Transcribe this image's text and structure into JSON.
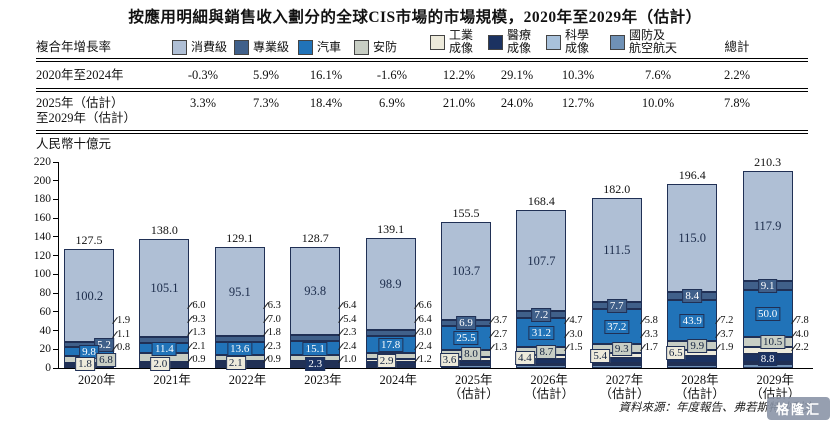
{
  "title": "按應用明細與銷售收入劃分的全球CIS市場的市場規模，2020年至2029年（估計）",
  "source_note": "資料來源：年度報告、弗若斯特沙利文",
  "watermark": "格隆汇",
  "table": {
    "row_header": "複合年增長率",
    "total_header": "總計",
    "rows": [
      {
        "label": "2020年至2024年",
        "values": [
          "-0.3%",
          "5.9%",
          "16.1%",
          "-1.6%",
          "12.2%",
          "29.1%",
          "10.3%",
          "7.6%",
          "2.2%"
        ]
      },
      {
        "label": "2025年（估計）\n至2029年（估計）",
        "values": [
          "3.3%",
          "7.3%",
          "18.4%",
          "6.9%",
          "21.0%",
          "24.0%",
          "12.7%",
          "10.0%",
          "7.8%"
        ]
      }
    ]
  },
  "legend": [
    {
      "key": "consumer",
      "label": "消費級",
      "color": "#afbfd5"
    },
    {
      "key": "professional",
      "label": "專業級",
      "color": "#40608a"
    },
    {
      "key": "automotive",
      "label": "汽車",
      "color": "#2173b8"
    },
    {
      "key": "security",
      "label": "安防",
      "color": "#c8cec4"
    },
    {
      "key": "industrial",
      "label": "工業\n成像",
      "color": "#edeadb"
    },
    {
      "key": "medical",
      "label": "醫療\n成像",
      "color": "#1b3261"
    },
    {
      "key": "scientific",
      "label": "科學\n成像",
      "color": "#a8c1db"
    },
    {
      "key": "defense",
      "label": "國防及\n航空航天",
      "color": "#6f91b6"
    }
  ],
  "chart_data": {
    "type": "bar",
    "stacked": true,
    "title": "按應用明細與銷售收入劃分的全球CIS市場的市場規模，2020年至2029年（估計）",
    "ylabel": "人民幣十億元",
    "y_axis": {
      "min": 0,
      "max": 220,
      "step": 20
    },
    "grid": false,
    "stack_order_bottom_to_top": [
      "defense",
      "scientific",
      "medical",
      "industrial",
      "security",
      "automotive",
      "professional",
      "consumer"
    ],
    "years": [
      {
        "label": "2020年",
        "label2": "",
        "total": 127.5,
        "values": {
          "consumer": 100.2,
          "professional": 5.2,
          "automotive": 9.8,
          "security": 6.8,
          "industrial": 1.8,
          "medical": 1.1,
          "scientific": 0.8,
          "defense": 1.9
        },
        "boxed": [
          "professional",
          "automotive",
          "security",
          "industrial"
        ],
        "side": [
          "defense",
          "medical",
          "scientific"
        ]
      },
      {
        "label": "2021年",
        "label2": "",
        "total": 138.0,
        "values": {
          "consumer": 105.1,
          "professional": 6.0,
          "automotive": 11.4,
          "security": 9.3,
          "industrial": 2.0,
          "medical": 1.3,
          "scientific": 0.9,
          "defense": 2.1
        },
        "boxed": [
          "automotive",
          "industrial"
        ],
        "side": [
          "professional",
          "security",
          "medical",
          "defense",
          "scientific"
        ]
      },
      {
        "label": "2022年",
        "label2": "",
        "total": 129.1,
        "values": {
          "consumer": 95.1,
          "professional": 6.3,
          "automotive": 13.6,
          "security": 7.0,
          "industrial": 2.1,
          "medical": 1.8,
          "scientific": 0.9,
          "defense": 2.3
        },
        "boxed": [
          "automotive",
          "industrial"
        ],
        "side": [
          "professional",
          "security",
          "medical",
          "defense",
          "scientific"
        ]
      },
      {
        "label": "2023年",
        "label2": "",
        "total": 128.7,
        "values": {
          "consumer": 93.8,
          "professional": 6.4,
          "automotive": 15.1,
          "security": 5.4,
          "industrial": 2.3,
          "medical": 2.3,
          "scientific": 1.0,
          "defense": 2.4
        },
        "boxed": [
          "automotive",
          "medical"
        ],
        "side": [
          "professional",
          "security",
          "industrial",
          "defense",
          "scientific"
        ]
      },
      {
        "label": "2024年",
        "label2": "",
        "total": 139.1,
        "values": {
          "consumer": 98.9,
          "professional": 6.6,
          "automotive": 17.8,
          "security": 6.4,
          "industrial": 2.9,
          "medical": 3.0,
          "scientific": 1.2,
          "defense": 2.4
        },
        "boxed": [
          "automotive",
          "industrial"
        ],
        "side": [
          "professional",
          "security",
          "medical",
          "defense",
          "scientific"
        ]
      },
      {
        "label": "2025年",
        "label2": "（估計）",
        "total": 155.5,
        "values": {
          "consumer": 103.7,
          "professional": 6.9,
          "automotive": 25.5,
          "security": 8.0,
          "industrial": 3.6,
          "medical": 3.7,
          "scientific": 1.3,
          "defense": 2.7
        },
        "boxed": [
          "professional",
          "automotive",
          "security",
          "industrial"
        ],
        "side": [
          "medical",
          "defense",
          "scientific"
        ]
      },
      {
        "label": "2026年",
        "label2": "（估計）",
        "total": 168.4,
        "values": {
          "consumer": 107.7,
          "professional": 7.2,
          "automotive": 31.2,
          "security": 8.7,
          "industrial": 4.4,
          "medical": 4.7,
          "scientific": 1.5,
          "defense": 3.0
        },
        "boxed": [
          "professional",
          "automotive",
          "security",
          "industrial"
        ],
        "side": [
          "medical",
          "defense",
          "scientific"
        ]
      },
      {
        "label": "2027年",
        "label2": "（估計）",
        "total": 182.0,
        "values": {
          "consumer": 111.5,
          "professional": 7.7,
          "automotive": 37.2,
          "security": 9.3,
          "industrial": 5.4,
          "medical": 5.8,
          "scientific": 1.7,
          "defense": 3.3
        },
        "boxed": [
          "professional",
          "automotive",
          "security",
          "industrial"
        ],
        "side": [
          "medical",
          "defense",
          "scientific"
        ]
      },
      {
        "label": "2028年",
        "label2": "（估計）",
        "total": 196.4,
        "values": {
          "consumer": 115.0,
          "professional": 8.4,
          "automotive": 43.9,
          "security": 9.9,
          "industrial": 6.5,
          "medical": 7.2,
          "scientific": 1.9,
          "defense": 3.7
        },
        "boxed": [
          "professional",
          "automotive",
          "security",
          "industrial"
        ],
        "side": [
          "medical",
          "defense",
          "scientific"
        ]
      },
      {
        "label": "2029年",
        "label2": "（估計）",
        "total": 210.3,
        "values": {
          "consumer": 117.9,
          "professional": 9.1,
          "automotive": 50.0,
          "security": 10.5,
          "industrial": 7.8,
          "medical": 8.8,
          "scientific": 2.2,
          "defense": 4.0
        },
        "boxed": [
          "professional",
          "automotive",
          "security",
          "medical"
        ],
        "side": [
          "industrial",
          "defense",
          "scientific"
        ]
      }
    ]
  },
  "colors": {
    "outline": "#203055",
    "dark_text": "#15243f",
    "light_text": "#ffffff"
  }
}
